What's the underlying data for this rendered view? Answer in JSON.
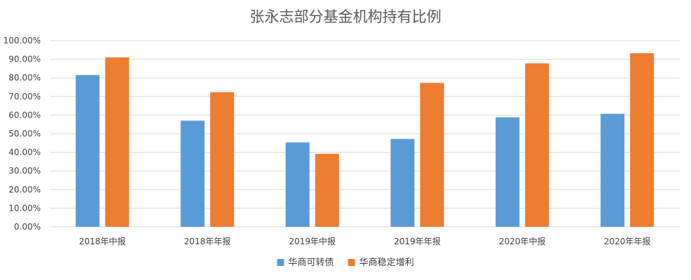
{
  "chart_data": {
    "type": "bar",
    "title": "张永志部分基金机构持有比例",
    "xlabel": "",
    "ylabel": "",
    "categories": [
      "2018年中报",
      "2018年年报",
      "2019年中报",
      "2019年年报",
      "2020年中报",
      "2020年年报"
    ],
    "series": [
      {
        "name": "华商可转债",
        "color": "#5B9BD5",
        "values": [
          81.5,
          57.0,
          45.3,
          47.2,
          58.8,
          60.7
        ]
      },
      {
        "name": "华商稳定增利",
        "color": "#ED7D31",
        "values": [
          91.0,
          72.3,
          39.2,
          77.3,
          87.8,
          93.2
        ]
      }
    ],
    "ylim": [
      0,
      100
    ],
    "yticks": [
      "0.00%",
      "10.00%",
      "20.00%",
      "30.00%",
      "40.00%",
      "50.00%",
      "60.00%",
      "70.00%",
      "80.00%",
      "90.00%",
      "100.00%"
    ],
    "grid": true,
    "legend_position": "bottom"
  }
}
